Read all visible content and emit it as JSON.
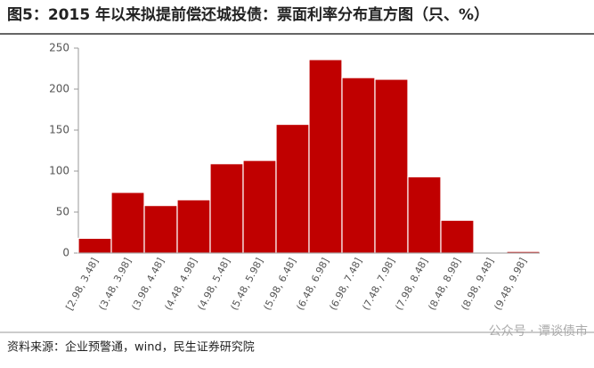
{
  "chart_data": {
    "type": "bar",
    "title": "图5：2015 年以来拟提前偿还城投债：票面利率分布直方图（只、%）",
    "categories": [
      "[2.98, 3.48]",
      "(3.48, 3.98]",
      "(3.98, 4.48]",
      "(4.48, 4.98]",
      "(4.98, 5.48]",
      "(5.48, 5.98]",
      "(5.98, 6.48]",
      "(6.48, 6.98]",
      "(6.98, 7.48]",
      "(7.48, 7.98]",
      "(7.98, 8.48]",
      "(8.48, 8.98]",
      "(8.98, 9.48]",
      "(9.48, 9.98]"
    ],
    "values": [
      18,
      74,
      58,
      65,
      109,
      113,
      157,
      236,
      214,
      212,
      93,
      40,
      1,
      2
    ],
    "color": "#c00000",
    "ylim": [
      0,
      250
    ],
    "yticks": [
      0,
      50,
      100,
      150,
      200,
      250
    ],
    "grid": false,
    "source": "资料来源：企业预警通，wind，民生证券研究院",
    "watermark": "公众号 · 谭谈债市"
  }
}
